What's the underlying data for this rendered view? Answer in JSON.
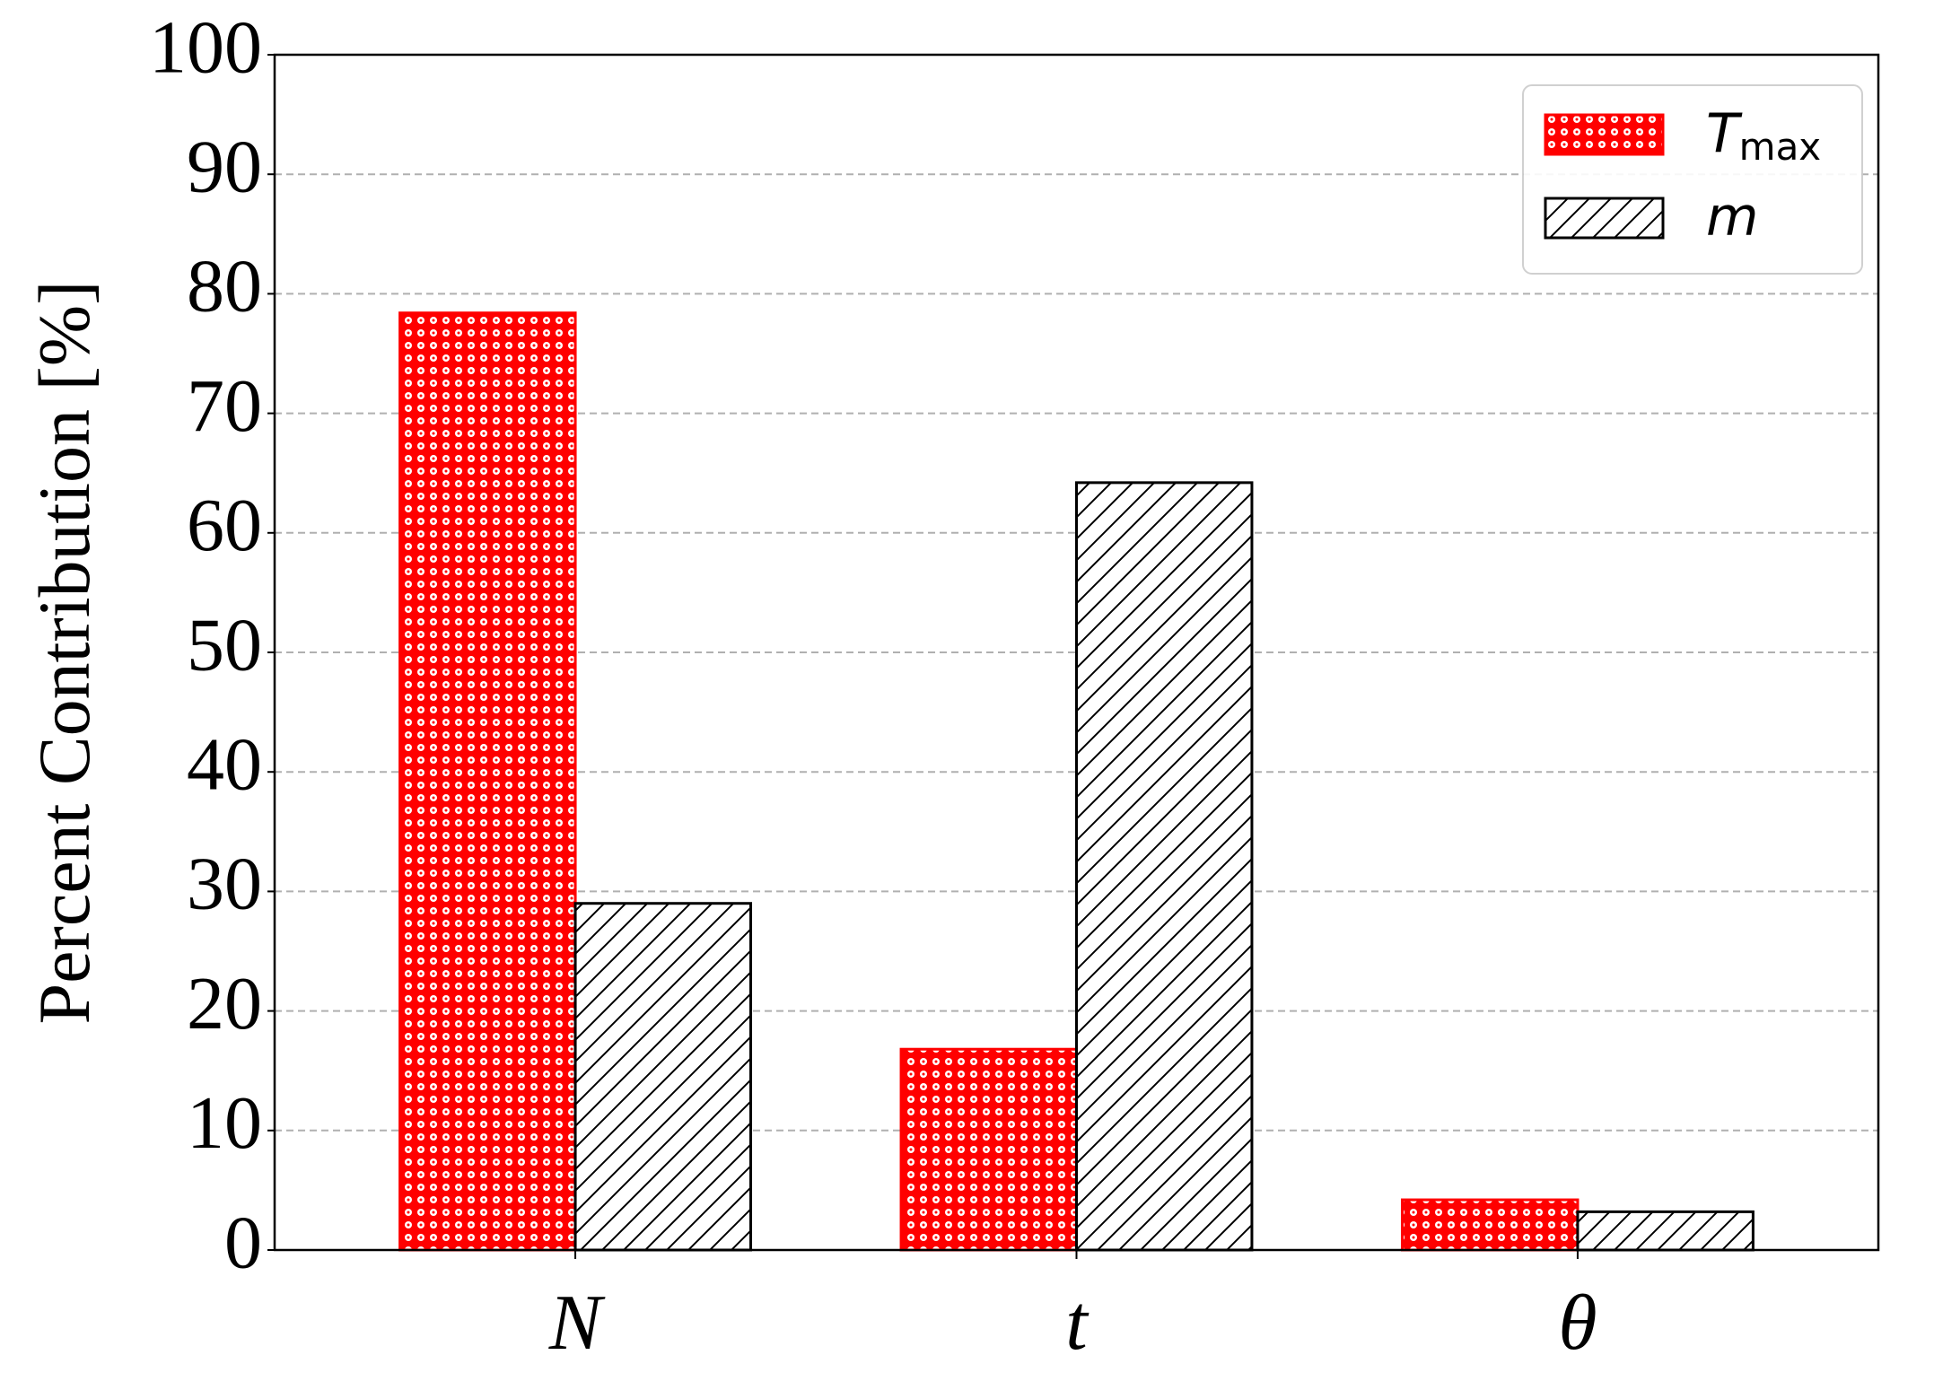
{
  "chart_data": {
    "type": "bar",
    "ylabel": "Percent Contribution [%]",
    "categories": [
      "N",
      "t",
      "θ"
    ],
    "series": [
      {
        "name": "Tmax",
        "color": "#ff0000",
        "values": [
          78.4,
          16.8,
          4.2
        ]
      },
      {
        "name": "m",
        "color": "#000000",
        "values": [
          29.0,
          64.2,
          3.2
        ]
      }
    ],
    "ylim": [
      0,
      100
    ],
    "yticks": [
      0,
      10,
      20,
      30,
      40,
      50,
      60,
      70,
      80,
      90,
      100
    ],
    "grid": true,
    "legend": "upper right"
  }
}
